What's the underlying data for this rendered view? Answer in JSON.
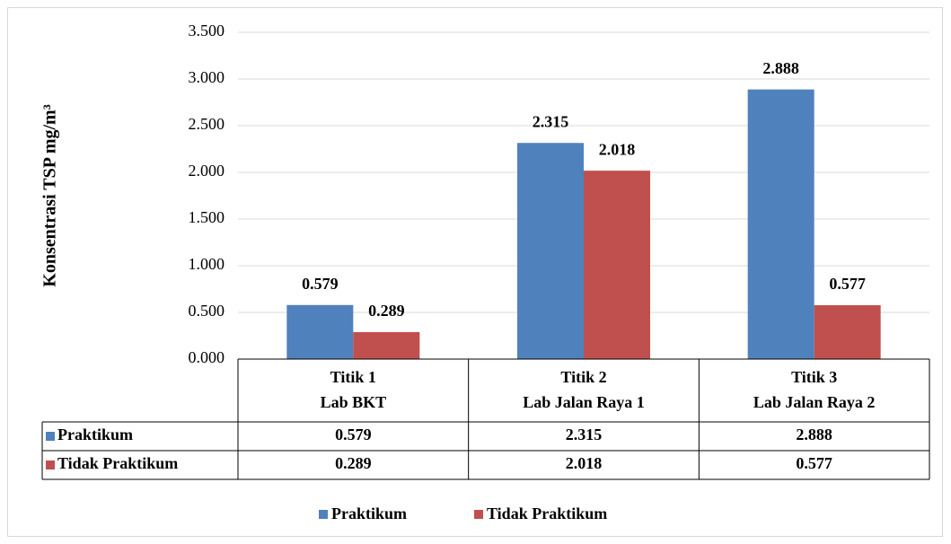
{
  "chart_data": {
    "type": "bar",
    "y_label": "Konsentrasi TSP mg/m³",
    "categories": [
      [
        "Titik 1",
        "Lab BKT"
      ],
      [
        "Titik 2",
        "Lab Jalan Raya 1"
      ],
      [
        "Titik 3",
        "Lab Jalan Raya 2"
      ]
    ],
    "series": [
      {
        "name": "Praktikum",
        "color": "#4f81bd",
        "values": [
          0.579,
          2.315,
          2.888
        ]
      },
      {
        "name": "Tidak Praktikum",
        "color": "#c0504d",
        "values": [
          0.289,
          2.018,
          0.577
        ]
      }
    ],
    "ylim": [
      0,
      3.5
    ],
    "yticks": [
      {
        "value": 0,
        "label": "0.000"
      },
      {
        "value": 0.5,
        "label": "0.500"
      },
      {
        "value": 1,
        "label": "1.000"
      },
      {
        "value": 1.5,
        "label": "1.500"
      },
      {
        "value": 2,
        "label": "2.000"
      },
      {
        "value": 2.5,
        "label": "2.500"
      },
      {
        "value": 3,
        "label": "3.000"
      },
      {
        "value": 3.5,
        "label": "3.500"
      }
    ],
    "grid": true,
    "legend": "bottom",
    "data_table": true
  }
}
